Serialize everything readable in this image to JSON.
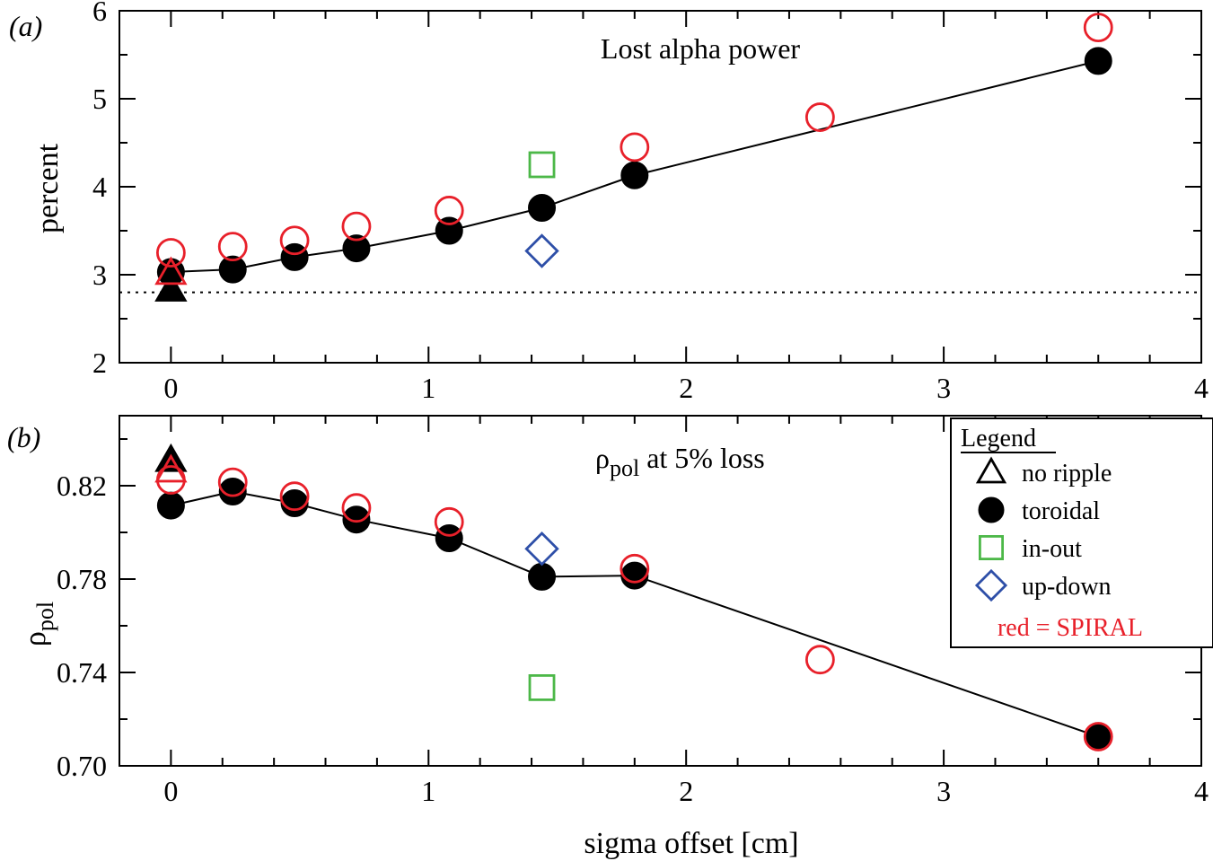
{
  "chart_data": [
    {
      "panel": "(a)",
      "type": "scatter",
      "title": "Lost alpha power",
      "ylabel": "percent",
      "xlabel": "",
      "xlim": [
        -0.2,
        4
      ],
      "ylim": [
        2,
        6
      ],
      "xticks": [
        "0",
        "1",
        "2",
        "3",
        "4"
      ],
      "yticks": [
        "2",
        "3",
        "4",
        "5",
        "6"
      ],
      "reference_line": {
        "y": 2.8,
        "style": "dotted"
      },
      "series": [
        {
          "name": "toroidal",
          "marker": "filled-circle",
          "color": "#000000",
          "connected": true,
          "x": [
            0,
            0.24,
            0.48,
            0.72,
            1.08,
            1.44,
            1.8,
            3.6
          ],
          "y": [
            3.03,
            3.06,
            3.2,
            3.3,
            3.5,
            3.76,
            4.13,
            5.43
          ]
        },
        {
          "name": "toroidal SPIRAL",
          "marker": "open-circle",
          "color": "#e8202a",
          "connected": false,
          "x": [
            0,
            0.24,
            0.48,
            0.72,
            1.08,
            1.8,
            2.52,
            3.6
          ],
          "y": [
            3.25,
            3.32,
            3.39,
            3.55,
            3.73,
            4.45,
            4.79,
            5.81
          ]
        },
        {
          "name": "no ripple",
          "marker": "filled-triangle",
          "color": "#000000",
          "connected": false,
          "x": [
            0
          ],
          "y": [
            2.83
          ]
        },
        {
          "name": "no ripple SPIRAL",
          "marker": "open-triangle",
          "color": "#e8202a",
          "connected": false,
          "x": [
            0
          ],
          "y": [
            3.02
          ]
        },
        {
          "name": "in-out",
          "marker": "open-square",
          "color": "#4cb848",
          "connected": false,
          "x": [
            1.44
          ],
          "y": [
            4.25
          ]
        },
        {
          "name": "up-down",
          "marker": "open-diamond",
          "color": "#2e4fa8",
          "connected": false,
          "x": [
            1.44
          ],
          "y": [
            3.27
          ]
        }
      ]
    },
    {
      "panel": "(b)",
      "type": "scatter",
      "title_main": "ρ",
      "title_sub": "pol",
      "title_rest": " at 5% loss",
      "ylabel_main": "ρ",
      "ylabel_sub": "pol",
      "xlabel": "sigma offset [cm]",
      "xlim": [
        -0.2,
        4
      ],
      "ylim": [
        0.7,
        0.85
      ],
      "xticks": [
        "0",
        "1",
        "2",
        "3",
        "4"
      ],
      "yticks": [
        "0.70",
        "0.74",
        "0.78",
        "0.82"
      ],
      "series": [
        {
          "name": "toroidal",
          "marker": "filled-circle",
          "color": "#000000",
          "connected": true,
          "x": [
            0,
            0.24,
            0.48,
            0.72,
            1.08,
            1.44,
            1.8,
            3.6
          ],
          "y": [
            0.8115,
            0.8175,
            0.8125,
            0.8055,
            0.7975,
            0.781,
            0.7815,
            0.7125
          ]
        },
        {
          "name": "toroidal SPIRAL",
          "marker": "open-circle",
          "color": "#e8202a",
          "connected": false,
          "x": [
            0,
            0.24,
            0.48,
            0.72,
            1.08,
            1.8,
            2.52,
            3.6
          ],
          "y": [
            0.8225,
            0.8215,
            0.8155,
            0.8105,
            0.8045,
            0.7845,
            0.7455,
            0.7125
          ]
        },
        {
          "name": "no ripple",
          "marker": "filled-triangle",
          "color": "#000000",
          "connected": false,
          "x": [
            0
          ],
          "y": [
            0.831
          ]
        },
        {
          "name": "no ripple SPIRAL",
          "marker": "open-triangle",
          "color": "#e8202a",
          "connected": false,
          "x": [
            0
          ],
          "y": [
            0.8265
          ]
        },
        {
          "name": "in-out",
          "marker": "open-square",
          "color": "#4cb848",
          "connected": false,
          "x": [
            1.44
          ],
          "y": [
            0.7335
          ]
        },
        {
          "name": "up-down",
          "marker": "open-diamond",
          "color": "#2e4fa8",
          "connected": false,
          "x": [
            1.44
          ],
          "y": [
            0.793
          ]
        }
      ]
    }
  ],
  "legend": {
    "title": "Legend",
    "position": "top-right of panel (b)",
    "items": [
      {
        "label": "no ripple",
        "marker": "open-triangle",
        "color": "#000000"
      },
      {
        "label": "toroidal",
        "marker": "filled-circle",
        "color": "#000000"
      },
      {
        "label": "in-out",
        "marker": "open-square",
        "color": "#4cb848"
      },
      {
        "label": "up-down",
        "marker": "open-diamond",
        "color": "#2e4fa8"
      }
    ],
    "note": "red = SPIRAL",
    "note_color": "#e8202a"
  }
}
